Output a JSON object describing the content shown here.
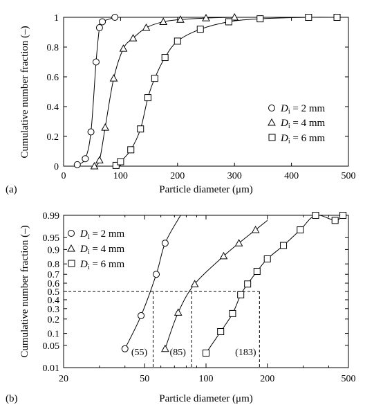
{
  "chart_data": [
    {
      "panel_label": "(a)",
      "type": "line",
      "xlabel": "Particle diameter (μm)",
      "ylabel": "Cumulative number fraction (–)",
      "xlim": [
        0,
        500
      ],
      "ylim": [
        0,
        1
      ],
      "x_tick_labels": [
        "0",
        "100",
        "200",
        "300",
        "400",
        "500"
      ],
      "y_tick_labels": [
        "0",
        "0.2",
        "0.4",
        "0.6",
        "0.8",
        "1"
      ],
      "legend_position": "center-right",
      "series": [
        {
          "name": "Di = 2 mm",
          "legend_parts": [
            "D",
            "i",
            " = 2 mm"
          ],
          "marker": "circle",
          "x": [
            24,
            38,
            48,
            57,
            63,
            68,
            90
          ],
          "y": [
            0.01,
            0.05,
            0.23,
            0.7,
            0.93,
            0.97,
            1.0
          ]
        },
        {
          "name": "Di = 4 mm",
          "legend_parts": [
            "D",
            "i",
            " = 4 mm"
          ],
          "marker": "triangle",
          "x": [
            54,
            63,
            73,
            88,
            105,
            122,
            145,
            175,
            205,
            250,
            300
          ],
          "y": [
            0.0,
            0.04,
            0.26,
            0.59,
            0.79,
            0.86,
            0.93,
            0.97,
            0.985,
            0.995,
            1.0
          ]
        },
        {
          "name": "Di = 6 mm",
          "legend_parts": [
            "D",
            "i",
            " = 6 mm"
          ],
          "marker": "square",
          "x": [
            92,
            100,
            118,
            135,
            148,
            160,
            178,
            200,
            240,
            290,
            345,
            430,
            480
          ],
          "y": [
            0.005,
            0.03,
            0.11,
            0.25,
            0.46,
            0.59,
            0.73,
            0.84,
            0.92,
            0.97,
            0.99,
            1.0,
            1.0
          ]
        }
      ]
    },
    {
      "panel_label": "(b)",
      "type": "line",
      "xlabel": "Particle diameter (μm)",
      "ylabel": "Cumulative number fraction (–)",
      "x_scale": "log",
      "y_scale": "probability",
      "xlim": [
        20,
        500
      ],
      "ylim": [
        0.01,
        0.99
      ],
      "x_ticks": [
        20,
        50,
        100,
        200,
        500
      ],
      "x_tick_labels": [
        "20",
        "50",
        "100",
        "200",
        "500"
      ],
      "y_ticks": [
        0.01,
        0.05,
        0.1,
        0.2,
        0.3,
        0.4,
        0.5,
        0.6,
        0.7,
        0.8,
        0.9,
        0.95,
        0.99
      ],
      "y_tick_labels": [
        "0.01",
        "0.05",
        "0.1",
        "0.2",
        "0.3",
        "0.4",
        "0.5",
        "0.6",
        "0.7",
        "0.8",
        "0.9",
        "0.95",
        "0.99"
      ],
      "legend_position": "top-left",
      "median_annotations": [
        {
          "x": 55,
          "label": "(55)"
        },
        {
          "x": 85,
          "label": "(85)"
        },
        {
          "x": 183,
          "label": "(183)"
        }
      ],
      "series": [
        {
          "name": "Di = 2 mm",
          "legend_parts": [
            "D",
            "i",
            " = 2 mm"
          ],
          "marker": "circle",
          "x": [
            40,
            48,
            57,
            63,
            75
          ],
          "y": [
            0.04,
            0.23,
            0.7,
            0.93,
            0.99
          ],
          "markers_count": 4
        },
        {
          "name": "Di = 4 mm",
          "legend_parts": [
            "D",
            "i",
            " = 4 mm"
          ],
          "marker": "triangle",
          "x": [
            63,
            73,
            88,
            122,
            145,
            175,
            200
          ],
          "y": [
            0.04,
            0.26,
            0.59,
            0.86,
            0.93,
            0.97,
            0.985
          ],
          "markers_count": 6
        },
        {
          "name": "Di = 6 mm",
          "legend_parts": [
            "D",
            "i",
            " = 6 mm"
          ],
          "marker": "square",
          "x": [
            100,
            118,
            135,
            148,
            160,
            178,
            200,
            240,
            290,
            345,
            430,
            470
          ],
          "y": [
            0.03,
            0.11,
            0.25,
            0.46,
            0.59,
            0.73,
            0.84,
            0.92,
            0.97,
            0.99,
            0.985,
            0.99
          ],
          "markers_count": 12
        }
      ]
    }
  ]
}
